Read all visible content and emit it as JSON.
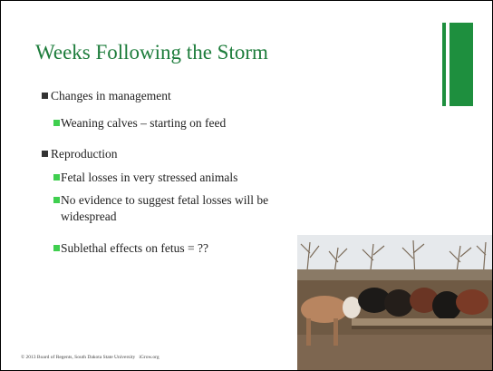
{
  "slide": {
    "title": "Weeks Following the Storm",
    "bullets": [
      {
        "level": 1,
        "text": "Changes in management"
      },
      {
        "level": 2,
        "text": "Weaning calves – starting on feed"
      },
      {
        "level": 1,
        "text": "Reproduction"
      },
      {
        "level": 2,
        "text": "Fetal losses in very stressed animals"
      },
      {
        "level": 2,
        "text": "No evidence to suggest fetal losses will be widespread"
      },
      {
        "level": 2,
        "text": "Sublethal effects on fetus  = ??"
      }
    ],
    "footer": "© 2013 Board of Regents, South Dakota State University   iGrow.org"
  }
}
